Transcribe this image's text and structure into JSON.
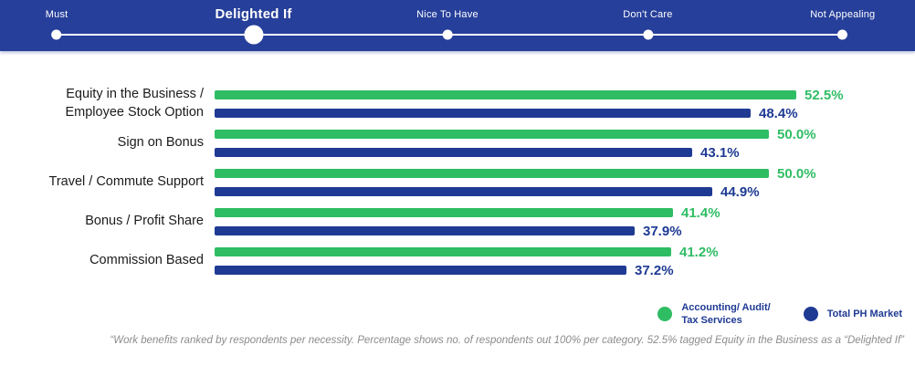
{
  "stepper": {
    "items": [
      {
        "label": "Must",
        "active": false
      },
      {
        "label": "Delighted If",
        "active": true
      },
      {
        "label": "Nice To Have",
        "active": false
      },
      {
        "label": "Don't Care",
        "active": false
      },
      {
        "label": "Not Appealing",
        "active": false
      }
    ]
  },
  "chart_data": {
    "type": "bar",
    "orientation": "horizontal",
    "categories": [
      "Equity in the Business / Employee Stock Option",
      "Sign on Bonus",
      "Travel / Commute Support",
      "Bonus / Profit Share",
      "Commission Based"
    ],
    "category_lines": [
      [
        "Equity in the Business /",
        "Employee Stock Option"
      ],
      [
        "Sign on Bonus"
      ],
      [
        "Travel / Commute Support"
      ],
      [
        "Bonus / Profit Share"
      ],
      [
        "Commission Based"
      ]
    ],
    "series": [
      {
        "name": "Accounting/ Audit/ Tax Services",
        "color": "#2ebd63",
        "values": [
          52.5,
          50.0,
          50.0,
          41.4,
          41.2
        ]
      },
      {
        "name": "Total PH Market",
        "color": "#1e3a93",
        "values": [
          48.4,
          43.1,
          44.9,
          37.9,
          37.2
        ]
      }
    ],
    "value_suffix": "%",
    "xlim": [
      0,
      55
    ],
    "grid": false,
    "legend_position": "bottom-right"
  },
  "legend": {
    "items": [
      {
        "label_lines": [
          "Accounting/ Audit/",
          "Tax Services"
        ],
        "color": "#2ebd63"
      },
      {
        "label_lines": [
          "Total PH Market"
        ],
        "color": "#1e3a93"
      }
    ]
  },
  "footnote": "“Work benefits ranked by respondents per necessity. Percentage shows no. of respondents out 100% per category. 52.5% tagged Equity in the Business as a “Delighted If”",
  "colors": {
    "header_bg": "#263f9a",
    "stepper_dot": "#ffffff",
    "series_green": "#2ebd63",
    "series_navy": "#1e3a93",
    "category_label": "#1b1b1b",
    "footnote_text": "#8c8c8c"
  }
}
